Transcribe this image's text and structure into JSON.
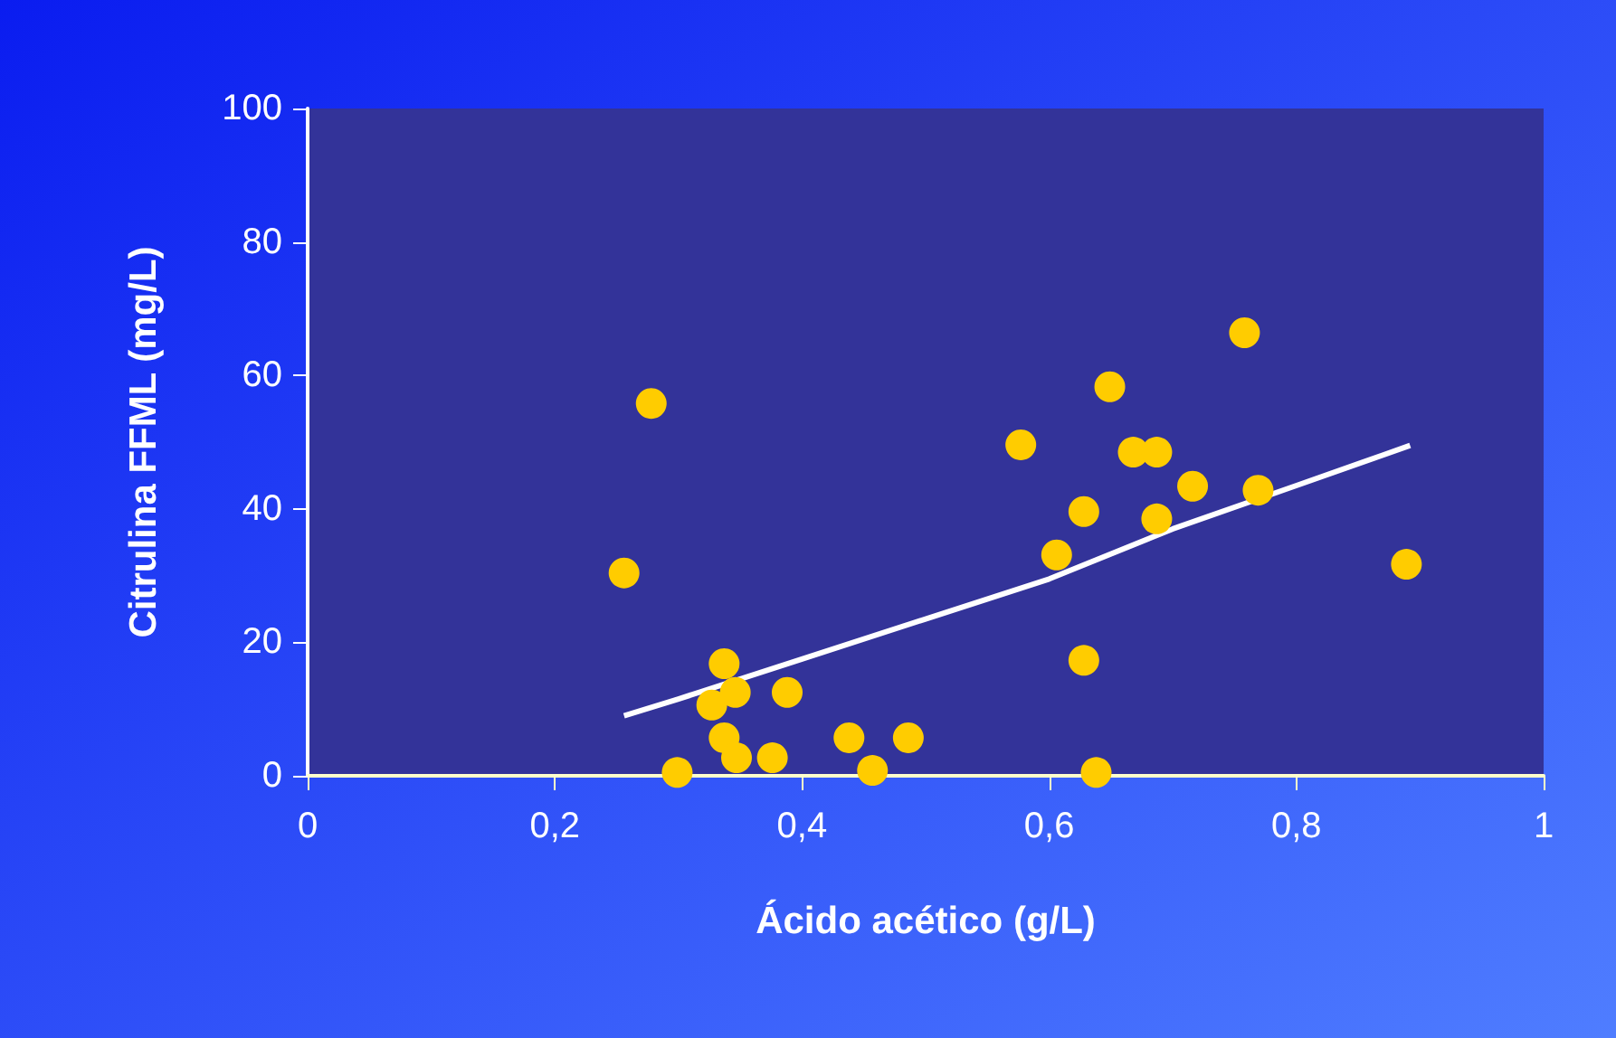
{
  "chart_data": {
    "type": "scatter",
    "xlabel": "Ácido acético (g/L)",
    "ylabel": "Citrulina FFML (mg/L)",
    "xlim": [
      0,
      1
    ],
    "xticks": [
      0,
      {
        "value": 0.2,
        "label": "0,2"
      },
      {
        "value": 0.4,
        "label": "0,4"
      },
      {
        "value": 0.6,
        "label": "0,6"
      },
      {
        "value": 0.8,
        "label": "0,8"
      },
      1
    ],
    "ylim": [
      0,
      100
    ],
    "yticks": [
      0,
      20,
      40,
      60,
      80,
      100
    ],
    "grid": false,
    "series": [
      {
        "color": "#ffcc00",
        "marker": "circle",
        "x": [
          0.256,
          0.278,
          0.299,
          0.327,
          0.337,
          0.337,
          0.346,
          0.347,
          0.376,
          0.388,
          0.438,
          0.457,
          0.486,
          0.577,
          0.606,
          0.628,
          0.628,
          0.638,
          0.649,
          0.668,
          0.687,
          0.687,
          0.716,
          0.758,
          0.769,
          0.889
        ],
        "values": [
          30.4,
          55.8,
          0.5,
          10.6,
          16.8,
          5.7,
          12.5,
          2.7,
          2.7,
          12.5,
          5.7,
          0.8,
          5.7,
          49.6,
          33.1,
          39.6,
          17.3,
          0.5,
          58.3,
          48.5,
          48.5,
          38.5,
          43.4,
          66.4,
          42.8,
          31.7
        ]
      },
      {
        "type": "line",
        "color": "#ffffff",
        "marker": "none",
        "line_style": "solid",
        "x": [
          0.256,
          0.3,
          0.4,
          0.5,
          0.6,
          0.7,
          0.8,
          0.892
        ],
        "values": [
          9,
          11.5,
          17.5,
          23.5,
          29.5,
          37,
          43.5,
          49.5
        ]
      }
    ]
  }
}
